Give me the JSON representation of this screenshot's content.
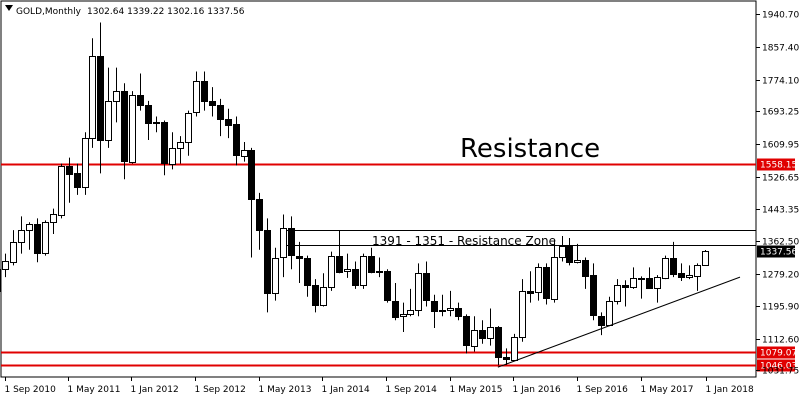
{
  "header": {
    "symbol": "GOLD,Monthly",
    "ohlc": "1302.64 1339.22 1302.16 1337.56"
  },
  "annotations": {
    "resistance": "Resistance",
    "zone": "1391 - 1351 - Resistance Zone"
  },
  "current_price": "1337.56",
  "colors": {
    "background": "#ffffff",
    "axis": "#000000",
    "bull_candle": "#ffffff",
    "bear_candle": "#000000",
    "level_line": "#e00000",
    "level_label_bg": "#e00000",
    "zone_line": "#000000",
    "trendline": "#000000",
    "price_label_bg": "#000000"
  },
  "chart_data": {
    "type": "candlestick",
    "title": "GOLD,Monthly",
    "x_ticks": [
      "1 Sep 2010",
      "1 May 2011",
      "1 Jan 2012",
      "1 Sep 2012",
      "1 May 2013",
      "1 Jan 2014",
      "1 Sep 2014",
      "1 May 2015",
      "1 Jan 2016",
      "1 Sep 2016",
      "1 May 2017",
      "1 Jan 2018"
    ],
    "y_ticks": [
      "1940.70",
      "1857.40",
      "1774.10",
      "1693.25",
      "1609.95",
      "1526.65",
      "1443.35",
      "1362.50",
      "1279.20",
      "1195.90",
      "1112.60",
      "1031.75"
    ],
    "y_tick_values": [
      1940.7,
      1857.4,
      1774.1,
      1693.25,
      1609.95,
      1526.65,
      1443.35,
      1362.5,
      1279.2,
      1195.9,
      1112.6,
      1031.75
    ],
    "ylim": [
      1015,
      1975
    ],
    "grid": false,
    "levels": [
      {
        "value": 1558.15,
        "label": "1558.15"
      },
      {
        "value": 1079.07,
        "label": "1079.07"
      },
      {
        "value": 1046.03,
        "label": "1046.03"
      }
    ],
    "zone": [
      1391,
      1351
    ],
    "trendline": {
      "from": {
        "date": "2015-11",
        "value": 1040
      },
      "to": {
        "date": "2018-01",
        "value": 1270
      }
    },
    "candles": [
      {
        "date": "2010-07",
        "o": 1180,
        "h": 1240,
        "l": 1156,
        "c": 1235
      },
      {
        "date": "2010-08",
        "o": 1235,
        "h": 1300,
        "l": 1220,
        "c": 1290
      },
      {
        "date": "2010-09",
        "o": 1290,
        "h": 1330,
        "l": 1270,
        "c": 1310
      },
      {
        "date": "2010-10",
        "o": 1310,
        "h": 1390,
        "l": 1300,
        "c": 1360
      },
      {
        "date": "2010-11",
        "o": 1360,
        "h": 1425,
        "l": 1330,
        "c": 1390
      },
      {
        "date": "2010-12",
        "o": 1390,
        "h": 1410,
        "l": 1340,
        "c": 1405
      },
      {
        "date": "2011-01",
        "o": 1405,
        "h": 1420,
        "l": 1308,
        "c": 1330
      },
      {
        "date": "2011-02",
        "o": 1330,
        "h": 1415,
        "l": 1325,
        "c": 1410
      },
      {
        "date": "2011-03",
        "o": 1410,
        "h": 1445,
        "l": 1380,
        "c": 1430
      },
      {
        "date": "2011-04",
        "o": 1430,
        "h": 1560,
        "l": 1420,
        "c": 1555
      },
      {
        "date": "2011-05",
        "o": 1555,
        "h": 1575,
        "l": 1460,
        "c": 1535
      },
      {
        "date": "2011-06",
        "o": 1535,
        "h": 1560,
        "l": 1480,
        "c": 1500
      },
      {
        "date": "2011-07",
        "o": 1500,
        "h": 1640,
        "l": 1480,
        "c": 1625
      },
      {
        "date": "2011-08",
        "o": 1625,
        "h": 1880,
        "l": 1600,
        "c": 1835
      },
      {
        "date": "2011-09",
        "o": 1835,
        "h": 1920,
        "l": 1535,
        "c": 1620
      },
      {
        "date": "2011-10",
        "o": 1620,
        "h": 1805,
        "l": 1600,
        "c": 1720
      },
      {
        "date": "2011-11",
        "o": 1720,
        "h": 1805,
        "l": 1665,
        "c": 1745
      },
      {
        "date": "2011-12",
        "o": 1745,
        "h": 1765,
        "l": 1520,
        "c": 1565
      },
      {
        "date": "2012-01",
        "o": 1565,
        "h": 1745,
        "l": 1560,
        "c": 1735
      },
      {
        "date": "2012-02",
        "o": 1735,
        "h": 1790,
        "l": 1695,
        "c": 1710
      },
      {
        "date": "2012-03",
        "o": 1710,
        "h": 1720,
        "l": 1620,
        "c": 1665
      },
      {
        "date": "2012-04",
        "o": 1665,
        "h": 1680,
        "l": 1640,
        "c": 1665
      },
      {
        "date": "2012-05",
        "o": 1665,
        "h": 1670,
        "l": 1530,
        "c": 1560
      },
      {
        "date": "2012-06",
        "o": 1560,
        "h": 1640,
        "l": 1545,
        "c": 1600
      },
      {
        "date": "2012-07",
        "o": 1600,
        "h": 1630,
        "l": 1560,
        "c": 1615
      },
      {
        "date": "2012-08",
        "o": 1615,
        "h": 1695,
        "l": 1580,
        "c": 1690
      },
      {
        "date": "2012-09",
        "o": 1690,
        "h": 1795,
        "l": 1680,
        "c": 1770
      },
      {
        "date": "2012-10",
        "o": 1770,
        "h": 1795,
        "l": 1695,
        "c": 1720
      },
      {
        "date": "2012-11",
        "o": 1720,
        "h": 1755,
        "l": 1680,
        "c": 1710
      },
      {
        "date": "2012-12",
        "o": 1710,
        "h": 1725,
        "l": 1630,
        "c": 1675
      },
      {
        "date": "2013-01",
        "o": 1675,
        "h": 1700,
        "l": 1625,
        "c": 1660
      },
      {
        "date": "2013-02",
        "o": 1660,
        "h": 1680,
        "l": 1555,
        "c": 1580
      },
      {
        "date": "2013-03",
        "o": 1580,
        "h": 1615,
        "l": 1565,
        "c": 1595
      },
      {
        "date": "2013-04",
        "o": 1595,
        "h": 1600,
        "l": 1320,
        "c": 1470
      },
      {
        "date": "2013-05",
        "o": 1470,
        "h": 1485,
        "l": 1340,
        "c": 1390
      },
      {
        "date": "2013-06",
        "o": 1390,
        "h": 1420,
        "l": 1180,
        "c": 1230
      },
      {
        "date": "2013-07",
        "o": 1230,
        "h": 1345,
        "l": 1210,
        "c": 1320
      },
      {
        "date": "2013-08",
        "o": 1320,
        "h": 1430,
        "l": 1270,
        "c": 1395
      },
      {
        "date": "2013-09",
        "o": 1395,
        "h": 1425,
        "l": 1290,
        "c": 1325
      },
      {
        "date": "2013-10",
        "o": 1325,
        "h": 1360,
        "l": 1255,
        "c": 1320
      },
      {
        "date": "2013-11",
        "o": 1320,
        "h": 1325,
        "l": 1220,
        "c": 1250
      },
      {
        "date": "2013-12",
        "o": 1250,
        "h": 1265,
        "l": 1180,
        "c": 1200
      },
      {
        "date": "2014-01",
        "o": 1200,
        "h": 1280,
        "l": 1195,
        "c": 1245
      },
      {
        "date": "2014-02",
        "o": 1245,
        "h": 1335,
        "l": 1235,
        "c": 1325
      },
      {
        "date": "2014-03",
        "o": 1325,
        "h": 1390,
        "l": 1280,
        "c": 1285
      },
      {
        "date": "2014-04",
        "o": 1285,
        "h": 1330,
        "l": 1268,
        "c": 1290
      },
      {
        "date": "2014-05",
        "o": 1290,
        "h": 1310,
        "l": 1240,
        "c": 1250
      },
      {
        "date": "2014-06",
        "o": 1250,
        "h": 1330,
        "l": 1240,
        "c": 1325
      },
      {
        "date": "2014-07",
        "o": 1325,
        "h": 1345,
        "l": 1280,
        "c": 1285
      },
      {
        "date": "2014-08",
        "o": 1285,
        "h": 1320,
        "l": 1270,
        "c": 1285
      },
      {
        "date": "2014-09",
        "o": 1285,
        "h": 1290,
        "l": 1205,
        "c": 1210
      },
      {
        "date": "2014-10",
        "o": 1210,
        "h": 1255,
        "l": 1160,
        "c": 1170
      },
      {
        "date": "2014-11",
        "o": 1170,
        "h": 1205,
        "l": 1130,
        "c": 1175
      },
      {
        "date": "2014-12",
        "o": 1175,
        "h": 1240,
        "l": 1170,
        "c": 1185
      },
      {
        "date": "2015-01",
        "o": 1185,
        "h": 1305,
        "l": 1170,
        "c": 1280
      },
      {
        "date": "2015-02",
        "o": 1280,
        "h": 1310,
        "l": 1195,
        "c": 1210
      },
      {
        "date": "2015-03",
        "o": 1210,
        "h": 1225,
        "l": 1140,
        "c": 1185
      },
      {
        "date": "2015-04",
        "o": 1185,
        "h": 1225,
        "l": 1170,
        "c": 1185
      },
      {
        "date": "2015-05",
        "o": 1185,
        "h": 1235,
        "l": 1170,
        "c": 1190
      },
      {
        "date": "2015-06",
        "o": 1190,
        "h": 1205,
        "l": 1160,
        "c": 1170
      },
      {
        "date": "2015-07",
        "o": 1170,
        "h": 1175,
        "l": 1075,
        "c": 1095
      },
      {
        "date": "2015-08",
        "o": 1095,
        "h": 1170,
        "l": 1080,
        "c": 1135
      },
      {
        "date": "2015-09",
        "o": 1135,
        "h": 1160,
        "l": 1100,
        "c": 1115
      },
      {
        "date": "2015-10",
        "o": 1115,
        "h": 1190,
        "l": 1095,
        "c": 1142
      },
      {
        "date": "2015-11",
        "o": 1142,
        "h": 1145,
        "l": 1045,
        "c": 1065
      },
      {
        "date": "2015-12",
        "o": 1065,
        "h": 1088,
        "l": 1046,
        "c": 1060
      },
      {
        "date": "2016-01",
        "o": 1060,
        "h": 1125,
        "l": 1060,
        "c": 1118
      },
      {
        "date": "2016-02",
        "o": 1118,
        "h": 1265,
        "l": 1105,
        "c": 1235
      },
      {
        "date": "2016-03",
        "o": 1235,
        "h": 1285,
        "l": 1205,
        "c": 1230
      },
      {
        "date": "2016-04",
        "o": 1230,
        "h": 1305,
        "l": 1210,
        "c": 1295
      },
      {
        "date": "2016-05",
        "o": 1295,
        "h": 1305,
        "l": 1200,
        "c": 1215
      },
      {
        "date": "2016-06",
        "o": 1215,
        "h": 1365,
        "l": 1205,
        "c": 1322
      },
      {
        "date": "2016-07",
        "o": 1322,
        "h": 1375,
        "l": 1310,
        "c": 1350
      },
      {
        "date": "2016-08",
        "o": 1350,
        "h": 1370,
        "l": 1300,
        "c": 1310
      },
      {
        "date": "2016-09",
        "o": 1310,
        "h": 1355,
        "l": 1305,
        "c": 1315
      },
      {
        "date": "2016-10",
        "o": 1315,
        "h": 1320,
        "l": 1240,
        "c": 1275
      },
      {
        "date": "2016-11",
        "o": 1275,
        "h": 1305,
        "l": 1160,
        "c": 1172
      },
      {
        "date": "2016-12",
        "o": 1172,
        "h": 1180,
        "l": 1122,
        "c": 1150
      },
      {
        "date": "2017-01",
        "o": 1150,
        "h": 1220,
        "l": 1145,
        "c": 1210
      },
      {
        "date": "2017-02",
        "o": 1210,
        "h": 1265,
        "l": 1200,
        "c": 1250
      },
      {
        "date": "2017-03",
        "o": 1250,
        "h": 1262,
        "l": 1195,
        "c": 1245
      },
      {
        "date": "2017-04",
        "o": 1245,
        "h": 1295,
        "l": 1240,
        "c": 1268
      },
      {
        "date": "2017-05",
        "o": 1268,
        "h": 1272,
        "l": 1215,
        "c": 1268
      },
      {
        "date": "2017-06",
        "o": 1268,
        "h": 1295,
        "l": 1240,
        "c": 1242
      },
      {
        "date": "2017-07",
        "o": 1242,
        "h": 1275,
        "l": 1205,
        "c": 1270
      },
      {
        "date": "2017-08",
        "o": 1270,
        "h": 1325,
        "l": 1265,
        "c": 1320
      },
      {
        "date": "2017-09",
        "o": 1320,
        "h": 1360,
        "l": 1270,
        "c": 1280
      },
      {
        "date": "2017-10",
        "o": 1280,
        "h": 1305,
        "l": 1260,
        "c": 1270
      },
      {
        "date": "2017-11",
        "o": 1270,
        "h": 1300,
        "l": 1265,
        "c": 1275
      },
      {
        "date": "2017-12",
        "o": 1275,
        "h": 1305,
        "l": 1235,
        "c": 1302
      },
      {
        "date": "2018-01",
        "o": 1302.64,
        "h": 1339.22,
        "l": 1302.16,
        "c": 1337.56
      }
    ]
  }
}
